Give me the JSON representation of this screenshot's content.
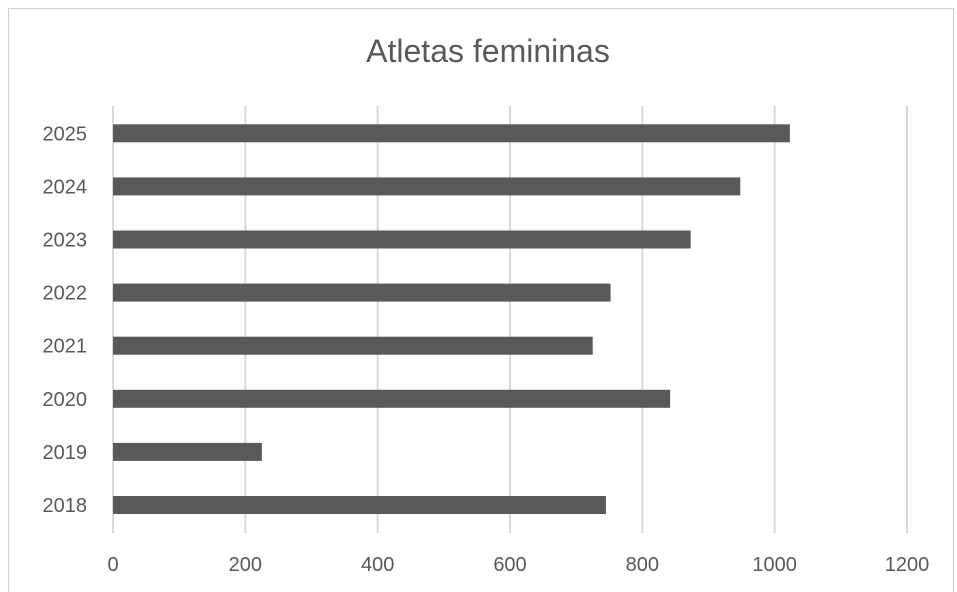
{
  "chart_data": {
    "type": "bar",
    "orientation": "horizontal",
    "title": "Atletas femininas",
    "xlabel": "",
    "ylabel": "",
    "categories": [
      "2018",
      "2019",
      "2020",
      "2021",
      "2022",
      "2023",
      "2024",
      "2025"
    ],
    "values": [
      745,
      225,
      842,
      725,
      752,
      873,
      948,
      1023
    ],
    "xlim": [
      0,
      1200
    ],
    "xticks": [
      0,
      200,
      400,
      600,
      800,
      1000,
      1200
    ],
    "grid": true,
    "legend": "none",
    "colors": {
      "bar": "#595959",
      "grid": "#d9d9d9",
      "text": "#595959"
    }
  }
}
